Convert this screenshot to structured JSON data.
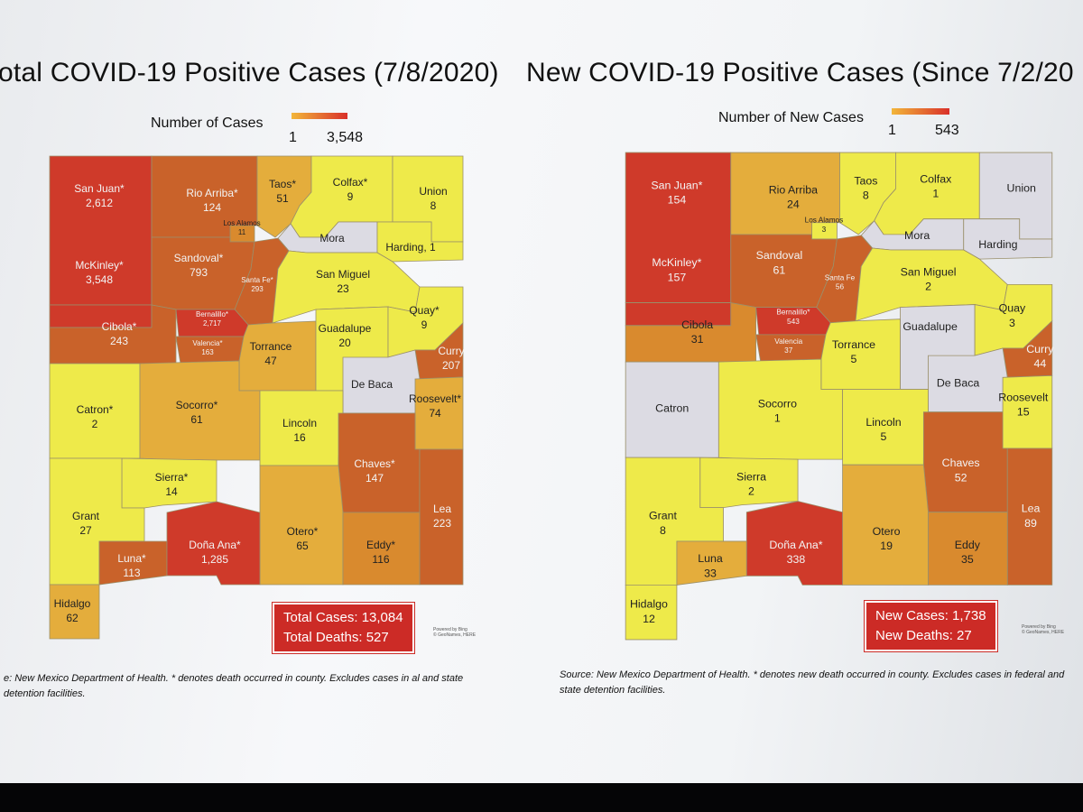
{
  "left": {
    "title": "otal COVID-19 Positive Cases (7/8/2020)",
    "legend_label": "Number of Cases",
    "legend_min": "1",
    "legend_max": "3,548",
    "counties": {
      "san_juan": {
        "name": "San Juan*",
        "value": "2,612"
      },
      "rio_arriba": {
        "name": "Rio Arriba*",
        "value": "124"
      },
      "taos": {
        "name": "Taos*",
        "value": "51"
      },
      "colfax": {
        "name": "Colfax*",
        "value": "9"
      },
      "union": {
        "name": "Union",
        "value": "8"
      },
      "los_alamos": {
        "name": "Los Alamos",
        "value": "11"
      },
      "mora": {
        "name": "Mora",
        "value": ""
      },
      "harding": {
        "name": "Harding, 1",
        "value": ""
      },
      "mckinley": {
        "name": "McKinley*",
        "value": "3,548"
      },
      "sandoval": {
        "name": "Sandoval*",
        "value": "793"
      },
      "santa_fe": {
        "name": "Santa Fe*",
        "value": "293"
      },
      "san_miguel": {
        "name": "San Miguel",
        "value": "23"
      },
      "cibola": {
        "name": "Cibola*",
        "value": "243"
      },
      "bernalillo": {
        "name": "Bernalillo*",
        "value": "2,717"
      },
      "valencia": {
        "name": "Valencia*",
        "value": "163"
      },
      "torrance": {
        "name": "Torrance",
        "value": "47"
      },
      "guadalupe": {
        "name": "Guadalupe",
        "value": "20"
      },
      "quay": {
        "name": "Quay*",
        "value": "9"
      },
      "curry": {
        "name": "Curry",
        "value": "207"
      },
      "de_baca": {
        "name": "De Baca",
        "value": ""
      },
      "catron": {
        "name": "Catron*",
        "value": "2"
      },
      "socorro": {
        "name": "Socorro*",
        "value": "61"
      },
      "roosevelt": {
        "name": "Roosevelt*",
        "value": "74"
      },
      "lincoln": {
        "name": "Lincoln",
        "value": "16"
      },
      "chaves": {
        "name": "Chaves*",
        "value": "147"
      },
      "sierra": {
        "name": "Sierra*",
        "value": "14"
      },
      "grant": {
        "name": "Grant",
        "value": "27"
      },
      "otero": {
        "name": "Otero*",
        "value": "65"
      },
      "lea": {
        "name": "Lea",
        "value": "223"
      },
      "luna": {
        "name": "Luna*",
        "value": "113"
      },
      "dona_ana": {
        "name": "Doña Ana*",
        "value": "1,285"
      },
      "eddy": {
        "name": "Eddy*",
        "value": "116"
      },
      "hidalgo": {
        "name": "Hidalgo",
        "value": "62"
      }
    },
    "totals_line1": "Total Cases: 13,084",
    "totals_line2": "Total Deaths:   527",
    "powered_1": "Powered by Bing",
    "powered_2": "© GeoNames, HERE",
    "source": "e: New Mexico Department of Health. * denotes death occurred in county. Excludes cases in al and state detention facilities."
  },
  "right": {
    "title": "New COVID-19 Positive Cases (Since 7/2/20",
    "legend_label": "Number of New Cases",
    "legend_min": "1",
    "legend_max": "543",
    "counties": {
      "san_juan": {
        "name": "San Juan*",
        "value": "154"
      },
      "rio_arriba": {
        "name": "Rio Arriba",
        "value": "24"
      },
      "taos": {
        "name": "Taos",
        "value": "8"
      },
      "colfax": {
        "name": "Colfax",
        "value": "1"
      },
      "union": {
        "name": "Union",
        "value": ""
      },
      "los_alamos": {
        "name": "Los Alamos",
        "value": "3"
      },
      "mora": {
        "name": "Mora",
        "value": ""
      },
      "harding": {
        "name": "Harding",
        "value": ""
      },
      "mckinley": {
        "name": "McKinley*",
        "value": "157"
      },
      "sandoval": {
        "name": "Sandoval",
        "value": "61"
      },
      "santa_fe": {
        "name": "Santa Fe",
        "value": "56"
      },
      "san_miguel": {
        "name": "San Miguel",
        "value": "2"
      },
      "cibola": {
        "name": "Cibola",
        "value": "31"
      },
      "bernalillo": {
        "name": "Bernalillo*",
        "value": "543"
      },
      "valencia": {
        "name": "Valencia",
        "value": "37"
      },
      "torrance": {
        "name": "Torrance",
        "value": "5"
      },
      "guadalupe": {
        "name": "Guadalupe",
        "value": ""
      },
      "quay": {
        "name": "Quay",
        "value": "3"
      },
      "curry": {
        "name": "Curry",
        "value": "44"
      },
      "de_baca": {
        "name": "De Baca",
        "value": ""
      },
      "catron": {
        "name": "Catron",
        "value": ""
      },
      "socorro": {
        "name": "Socorro",
        "value": "1"
      },
      "roosevelt": {
        "name": "Roosevelt",
        "value": "15"
      },
      "lincoln": {
        "name": "Lincoln",
        "value": "5"
      },
      "chaves": {
        "name": "Chaves",
        "value": "52"
      },
      "sierra": {
        "name": "Sierra",
        "value": "2"
      },
      "grant": {
        "name": "Grant",
        "value": "8"
      },
      "otero": {
        "name": "Otero",
        "value": "19"
      },
      "lea": {
        "name": "Lea",
        "value": "89"
      },
      "luna": {
        "name": "Luna",
        "value": "33"
      },
      "dona_ana": {
        "name": "Doña Ana*",
        "value": "338"
      },
      "eddy": {
        "name": "Eddy",
        "value": "35"
      },
      "hidalgo": {
        "name": "Hidalgo",
        "value": "12"
      }
    },
    "totals_line1": "New Cases: 1,738",
    "totals_line2": "New Deaths:    27",
    "powered_1": "Powered by Bing",
    "powered_2": "© GeoNames, HERE",
    "source": "Source: New Mexico Department of Health. * denotes new death occurred in county. Excludes cases in federal and state detention facilities."
  },
  "colors": {
    "red": "#cf3a2a",
    "dark_orange": "#c9622a",
    "orange": "#d98a2e",
    "light_orange": "#e4ad3c",
    "yellow": "#eeea4a",
    "light_yellow": "#f2ef5e",
    "gray": "#dcdbe3"
  }
}
